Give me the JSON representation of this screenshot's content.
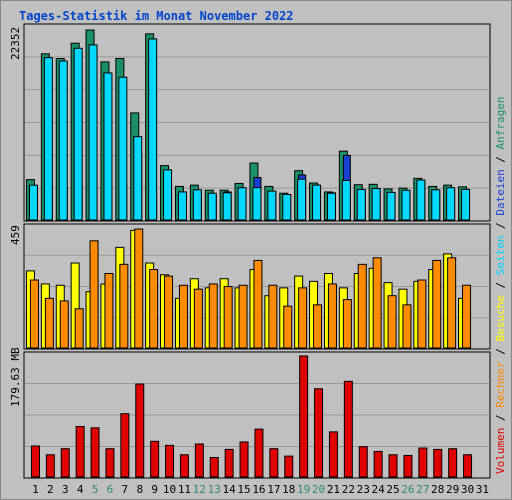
{
  "title": "Tages-Statistik im Monat November 2022",
  "colors": {
    "frame_bg": "#c0c0c0",
    "title": "#0044cc",
    "hits": "#1a8f6a",
    "files": "#1a3fd0",
    "pages": "#00d8ff",
    "visits": "#ffff00",
    "sites": "#ff8c00",
    "volume": "#e00000",
    "weekend_day": "#2b8a78",
    "weekday_day": "#000000"
  },
  "side_labels": {
    "anfragen": "Anfragen",
    "dateien": "Dateien",
    "seiten": "Seiten",
    "besuche": "Besuche",
    "rechner": "Rechner",
    "volumen": "Volumen",
    "sep": " / "
  },
  "chart_data": [
    {
      "type": "bar",
      "name": "hits-files-pages",
      "ylabel": "22352",
      "ylim": [
        0,
        22352
      ],
      "x": [
        1,
        2,
        3,
        4,
        5,
        6,
        7,
        8,
        9,
        10,
        11,
        12,
        13,
        14,
        15,
        16,
        17,
        18,
        19,
        20,
        21,
        22,
        23,
        24,
        25,
        26,
        27,
        28,
        29,
        30
      ],
      "series": [
        {
          "name": "Anfragen",
          "values": [
            4750,
            19550,
            19000,
            20800,
            22352,
            18600,
            19000,
            12600,
            21900,
            6400,
            3950,
            4100,
            3500,
            3500,
            4300,
            6700,
            3950,
            3150,
            5800,
            4350,
            3300,
            8100,
            4150,
            4200,
            3650,
            3750,
            4900,
            3950,
            4100,
            3900
          ]
        },
        {
          "name": "Dateien",
          "values": [
            3900,
            3900,
            3800,
            3900,
            4000,
            3800,
            4000,
            7500,
            3200,
            3300,
            2900,
            3500,
            2900,
            3300,
            3300,
            5000,
            3200,
            3000,
            5300,
            4100,
            3200,
            7600,
            3500,
            3600,
            3200,
            3300,
            4600,
            3400,
            3600,
            3600
          ]
        },
        {
          "name": "Seiten",
          "values": [
            4100,
            19100,
            18700,
            20200,
            20600,
            17300,
            16800,
            9800,
            21300,
            5900,
            3300,
            3550,
            3150,
            3200,
            3800,
            3800,
            3400,
            3000,
            4800,
            4100,
            3150,
            4650,
            3600,
            3700,
            3250,
            3500,
            4700,
            3550,
            3800,
            3600
          ]
        }
      ]
    },
    {
      "type": "bar",
      "name": "visits-sites",
      "ylabel": "459",
      "ylim": [
        0,
        459
      ],
      "x": [
        1,
        2,
        3,
        4,
        5,
        6,
        7,
        8,
        9,
        10,
        11,
        12,
        13,
        14,
        15,
        16,
        17,
        18,
        19,
        20,
        21,
        22,
        23,
        24,
        25,
        26,
        27,
        28,
        29,
        30
      ],
      "series": [
        {
          "name": "Besuche",
          "values": [
            295,
            245,
            240,
            325,
            215,
            245,
            385,
            450,
            325,
            280,
            190,
            265,
            230,
            265,
            230,
            300,
            200,
            230,
            275,
            255,
            285,
            230,
            285,
            305,
            250,
            225,
            255,
            300,
            360,
            190
          ]
        },
        {
          "name": "Rechner",
          "values": [
            260,
            190,
            180,
            150,
            410,
            285,
            320,
            455,
            300,
            275,
            240,
            225,
            245,
            235,
            240,
            335,
            240,
            160,
            230,
            165,
            245,
            185,
            320,
            345,
            200,
            165,
            260,
            335,
            345,
            240
          ]
        }
      ]
    },
    {
      "type": "bar",
      "name": "volume",
      "ylabel": "179.63 MB",
      "ylim": [
        0,
        179.63
      ],
      "x": [
        1,
        2,
        3,
        4,
        5,
        6,
        7,
        8,
        9,
        10,
        11,
        12,
        13,
        14,
        15,
        16,
        17,
        18,
        19,
        20,
        21,
        22,
        23,
        24,
        25,
        26,
        27,
        28,
        29,
        30
      ],
      "series": [
        {
          "name": "Volumen",
          "values": [
            46,
            33,
            42,
            75,
            73,
            42,
            94,
            138,
            53,
            47,
            33,
            49,
            29,
            41,
            52,
            71,
            42,
            31,
            179.63,
            131,
            67,
            142,
            45,
            38,
            33,
            32,
            43,
            41,
            42,
            33
          ]
        }
      ]
    }
  ],
  "day_labels": [
    "1",
    "2",
    "3",
    "4",
    "5",
    "6",
    "7",
    "8",
    "9",
    "10",
    "11",
    "12",
    "13",
    "14",
    "15",
    "16",
    "17",
    "18",
    "19",
    "20",
    "21",
    "22",
    "23",
    "24",
    "25",
    "26",
    "27",
    "28",
    "29",
    "30",
    "31"
  ],
  "weekend_days": [
    5,
    6,
    12,
    13,
    19,
    20,
    26,
    27
  ]
}
